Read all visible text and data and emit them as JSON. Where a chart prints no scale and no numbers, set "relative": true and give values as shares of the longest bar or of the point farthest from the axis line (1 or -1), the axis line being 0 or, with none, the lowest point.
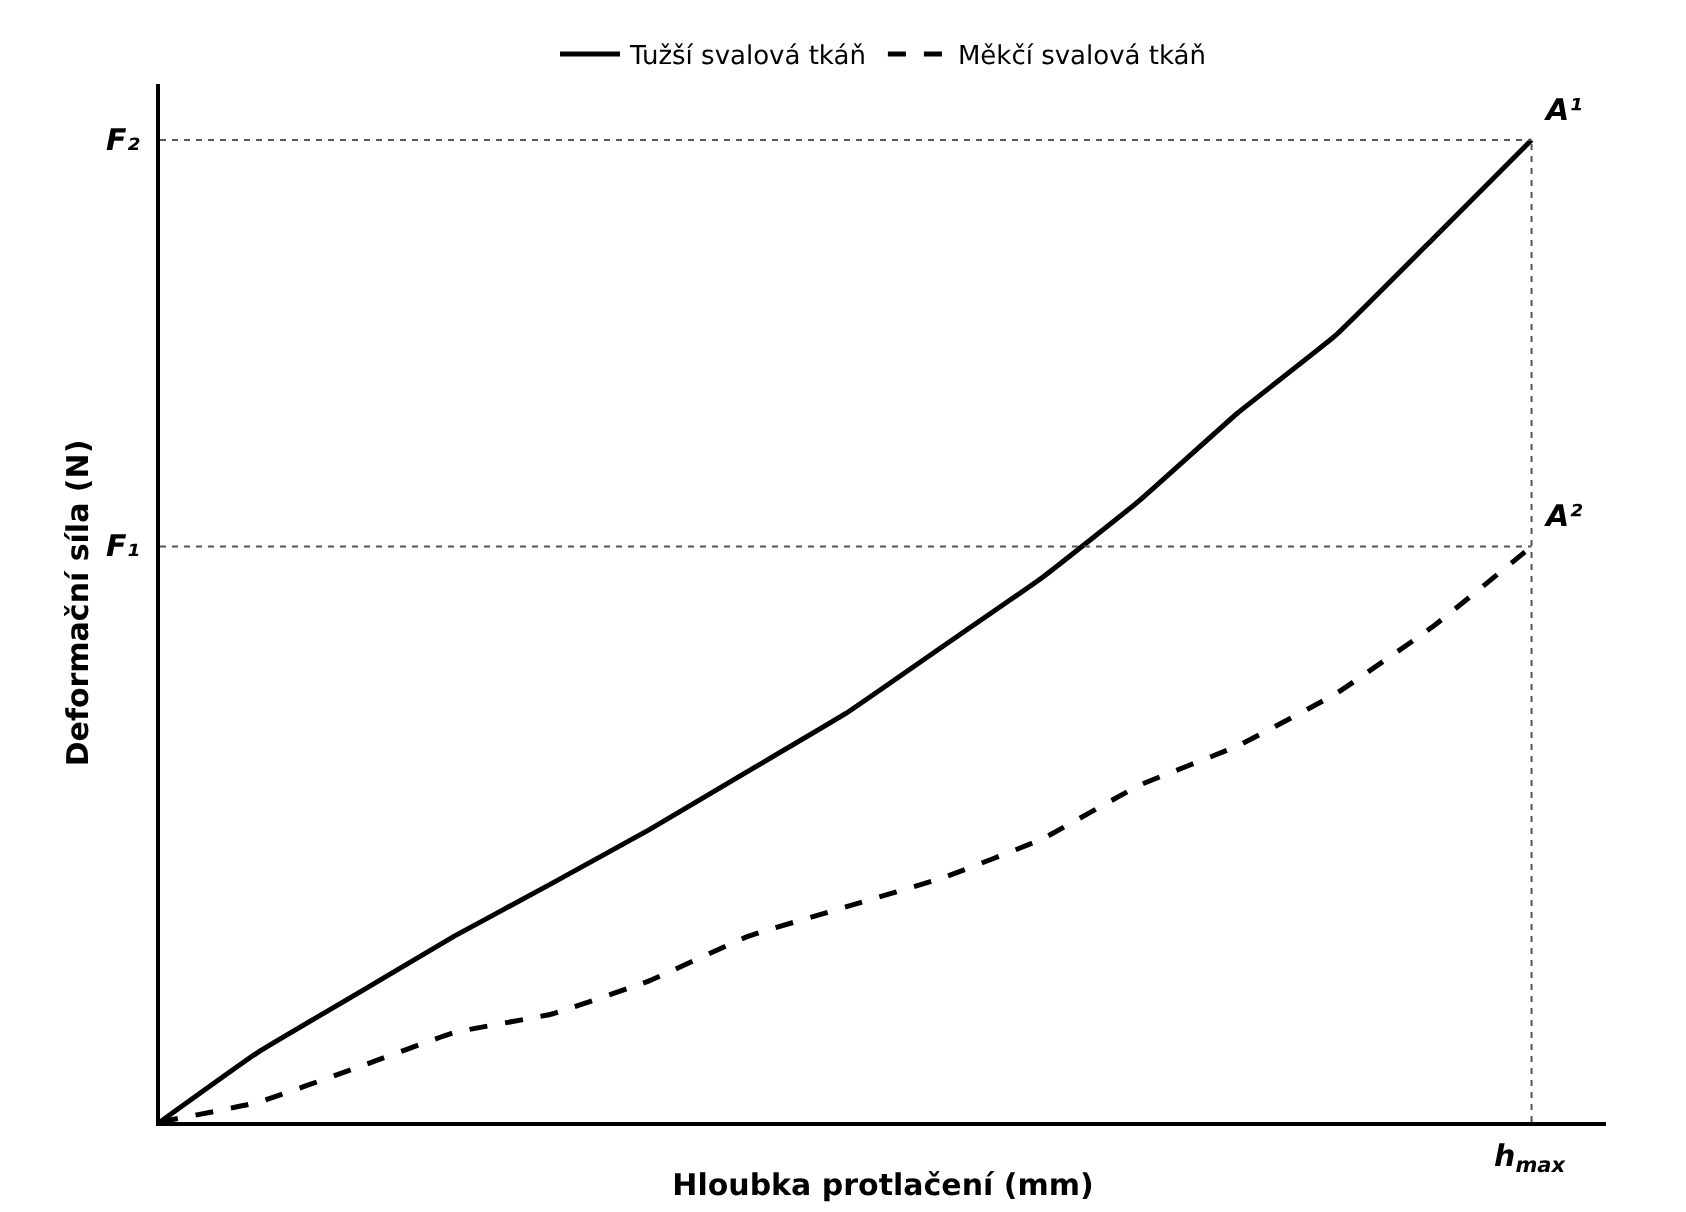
{
  "chart_data": {
    "type": "line",
    "relative": true,
    "xlabel": "Hloubka protlačení (mm)",
    "ylabel": "Deformační síla (N)",
    "categories": [
      null,
      null,
      null,
      null,
      null,
      null,
      null,
      null,
      null,
      null,
      null,
      null,
      null,
      null,
      null
    ],
    "series": [
      {
        "name": "Tužší svalová tkáň",
        "color": "#000000",
        "line_style": "solid",
        "values": [
          0,
          0.071,
          0.13,
          0.189,
          0.243,
          0.298,
          0.357,
          0.416,
          0.485,
          0.554,
          0.633,
          0.722,
          0.801,
          0.9,
          1
        ]
      },
      {
        "name": "Měkčí svalová tkáň",
        "color": "#000000",
        "line_style": "dashed",
        "values": [
          0,
          0.02,
          0.055,
          0.091,
          0.11,
          0.144,
          0.189,
          0.219,
          0.249,
          0.288,
          0.343,
          0.383,
          0.436,
          0.505,
          0.586
        ]
      }
    ],
    "ref_lines": [
      {
        "axis": "y",
        "value": 1,
        "label": "F₂",
        "line_style": "dotted",
        "color": "#555555"
      },
      {
        "axis": "y",
        "value": 0.586,
        "label": "F₁",
        "line_style": "dotted",
        "color": "#555555"
      },
      {
        "axis": "x",
        "label": "h$_{max}$",
        "line_style": "dotted",
        "color": "#555555"
      }
    ],
    "annotations": [
      "A¹",
      "A²"
    ],
    "legend": "top",
    "marker": "none"
  }
}
